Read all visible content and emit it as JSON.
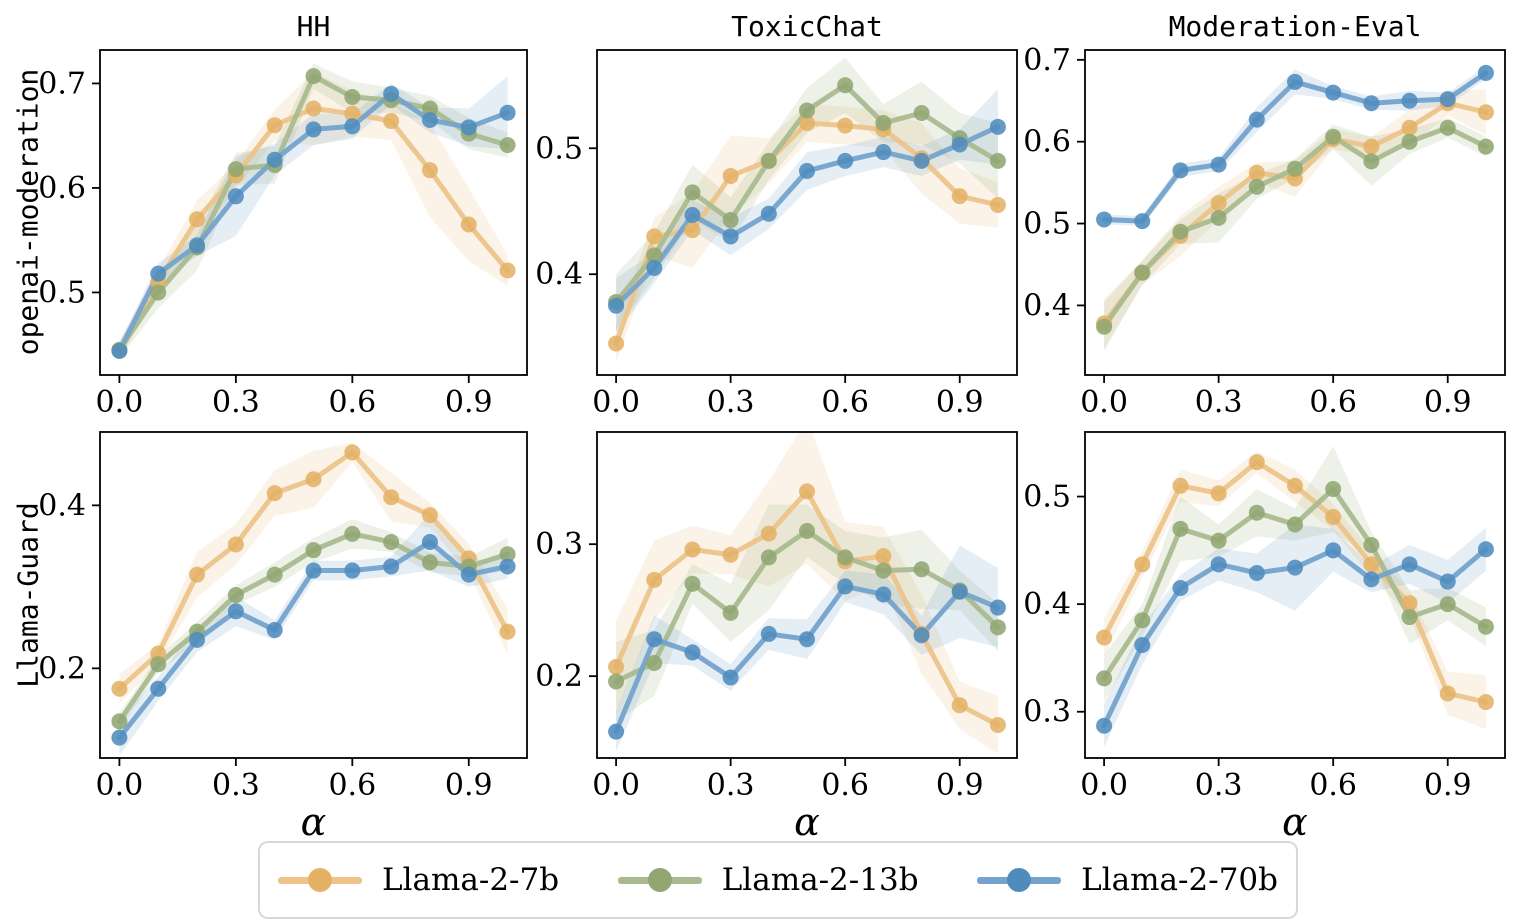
{
  "figure": {
    "background": "#ffffff",
    "frame_color": "#000000",
    "tick_label_color": "#000000"
  },
  "xlabel": "α",
  "rows": [
    {
      "label": "openai-moderation"
    },
    {
      "label": "Llama-Guard"
    }
  ],
  "cols": [
    {
      "title": "HH"
    },
    {
      "title": "ToxicChat"
    },
    {
      "title": "Moderation-Eval"
    }
  ],
  "legend": {
    "position": "bottom-center",
    "items": [
      {
        "label": "Llama-2-7b",
        "line_color": "#ecc48a",
        "marker_color": "#e4b267",
        "band_color": "rgba(230,180,110,0.16)"
      },
      {
        "label": "Llama-2-13b",
        "line_color": "#aaba90",
        "marker_color": "#91a672",
        "band_color": "rgba(145,166,114,0.16)"
      },
      {
        "label": "Llama-2-70b",
        "line_color": "#74a3cc",
        "marker_color": "#4f8cbe",
        "band_color": "rgba(95,145,195,0.16)"
      }
    ]
  },
  "chart_data": [
    {
      "id": "hh-openai-moderation",
      "type": "line",
      "title": "HH",
      "ylabel": "openai-moderation",
      "x": [
        0.0,
        0.1,
        0.2,
        0.3,
        0.4,
        0.5,
        0.6,
        0.7,
        0.8,
        0.9,
        1.0
      ],
      "xticks": [
        0.0,
        0.3,
        0.6,
        0.9
      ],
      "xtick_labels": [
        "0.0",
        "0.3",
        "0.6",
        "0.9"
      ],
      "ylim": [
        0.421,
        0.732
      ],
      "yticks": [
        0.5,
        0.6,
        0.7
      ],
      "grid": false,
      "series": [
        {
          "name": "Llama-2-7b",
          "values": [
            0.445,
            0.51,
            0.57,
            0.612,
            0.66,
            0.676,
            0.671,
            0.664,
            0.617,
            0.565,
            0.521
          ],
          "ci": [
            0.008,
            0.012,
            0.018,
            0.012,
            0.015,
            0.035,
            0.022,
            0.018,
            0.045,
            0.035,
            0.015
          ]
        },
        {
          "name": "Llama-2-13b",
          "values": [
            0.445,
            0.5,
            0.543,
            0.618,
            0.622,
            0.707,
            0.687,
            0.684,
            0.676,
            0.652,
            0.641
          ],
          "ci": [
            0.008,
            0.015,
            0.022,
            0.015,
            0.018,
            0.012,
            0.015,
            0.012,
            0.012,
            0.015,
            0.012
          ]
        },
        {
          "name": "Llama-2-70b",
          "values": [
            0.444,
            0.518,
            0.545,
            0.592,
            0.627,
            0.656,
            0.659,
            0.69,
            0.665,
            0.658,
            0.672
          ],
          "ci": [
            0.008,
            0.01,
            0.01,
            0.038,
            0.015,
            0.015,
            0.012,
            0.01,
            0.012,
            0.018,
            0.035
          ]
        }
      ]
    },
    {
      "id": "toxicchat-openai-moderation",
      "type": "line",
      "title": "ToxicChat",
      "ylabel": "openai-moderation",
      "x": [
        0.0,
        0.1,
        0.2,
        0.3,
        0.4,
        0.5,
        0.6,
        0.7,
        0.8,
        0.9,
        1.0
      ],
      "xticks": [
        0.0,
        0.3,
        0.6,
        0.9
      ],
      "xtick_labels": [
        "0.0",
        "0.3",
        "0.6",
        "0.9"
      ],
      "ylim": [
        0.32,
        0.578
      ],
      "yticks": [
        0.4,
        0.5
      ],
      "grid": false,
      "series": [
        {
          "name": "Llama-2-7b",
          "values": [
            0.345,
            0.43,
            0.435,
            0.478,
            0.49,
            0.52,
            0.518,
            0.515,
            0.492,
            0.462,
            0.455
          ],
          "ci": [
            0.015,
            0.015,
            0.03,
            0.032,
            0.018,
            0.015,
            0.015,
            0.015,
            0.028,
            0.022,
            0.018
          ]
        },
        {
          "name": "Llama-2-13b",
          "values": [
            0.378,
            0.415,
            0.465,
            0.443,
            0.49,
            0.53,
            0.55,
            0.52,
            0.528,
            0.508,
            0.49
          ],
          "ci": [
            0.022,
            0.018,
            0.022,
            0.018,
            0.015,
            0.018,
            0.022,
            0.015,
            0.025,
            0.02,
            0.03
          ]
        },
        {
          "name": "Llama-2-70b",
          "values": [
            0.375,
            0.405,
            0.447,
            0.43,
            0.448,
            0.482,
            0.49,
            0.497,
            0.49,
            0.503,
            0.517
          ],
          "ci": [
            0.022,
            0.012,
            0.012,
            0.015,
            0.012,
            0.015,
            0.012,
            0.012,
            0.012,
            0.012,
            0.03
          ]
        }
      ]
    },
    {
      "id": "moderation-eval-openai-moderation",
      "type": "line",
      "title": "Moderation-Eval",
      "ylabel": "openai-moderation",
      "x": [
        0.0,
        0.1,
        0.2,
        0.3,
        0.4,
        0.5,
        0.6,
        0.7,
        0.8,
        0.9,
        1.0
      ],
      "xticks": [
        0.0,
        0.3,
        0.6,
        0.9
      ],
      "xtick_labels": [
        "0.0",
        "0.3",
        "0.6",
        "0.9"
      ],
      "ylim": [
        0.315,
        0.712
      ],
      "yticks": [
        0.4,
        0.5,
        0.6,
        0.7
      ],
      "grid": false,
      "series": [
        {
          "name": "Llama-2-7b",
          "values": [
            0.378,
            0.44,
            0.485,
            0.525,
            0.562,
            0.555,
            0.603,
            0.594,
            0.617,
            0.647,
            0.636
          ],
          "ci": [
            0.03,
            0.015,
            0.025,
            0.02,
            0.012,
            0.022,
            0.012,
            0.012,
            0.022,
            0.015,
            0.028
          ]
        },
        {
          "name": "Llama-2-13b",
          "values": [
            0.374,
            0.44,
            0.49,
            0.507,
            0.545,
            0.567,
            0.606,
            0.576,
            0.6,
            0.617,
            0.594
          ],
          "ci": [
            0.03,
            0.015,
            0.015,
            0.03,
            0.015,
            0.012,
            0.015,
            0.03,
            0.015,
            0.012,
            0.012
          ]
        },
        {
          "name": "Llama-2-70b",
          "values": [
            0.505,
            0.503,
            0.565,
            0.572,
            0.627,
            0.673,
            0.66,
            0.647,
            0.65,
            0.652,
            0.684
          ],
          "ci": [
            0.006,
            0.006,
            0.008,
            0.008,
            0.015,
            0.015,
            0.008,
            0.008,
            0.012,
            0.008,
            0.008
          ]
        }
      ]
    },
    {
      "id": "hh-llama-guard",
      "type": "line",
      "title": "HH",
      "ylabel": "Llama-Guard",
      "xlabel": "α",
      "x": [
        0.0,
        0.1,
        0.2,
        0.3,
        0.4,
        0.5,
        0.6,
        0.7,
        0.8,
        0.9,
        1.0
      ],
      "xticks": [
        0.0,
        0.3,
        0.6,
        0.9
      ],
      "xtick_labels": [
        "0.0",
        "0.3",
        "0.6",
        "0.9"
      ],
      "ylim": [
        0.09,
        0.49
      ],
      "yticks": [
        0.2,
        0.4
      ],
      "grid": false,
      "series": [
        {
          "name": "Llama-2-7b",
          "values": [
            0.175,
            0.218,
            0.315,
            0.352,
            0.415,
            0.432,
            0.465,
            0.41,
            0.388,
            0.335,
            0.245
          ],
          "ci": [
            0.018,
            0.012,
            0.028,
            0.025,
            0.028,
            0.035,
            0.012,
            0.03,
            0.015,
            0.018,
            0.028
          ]
        },
        {
          "name": "Llama-2-13b",
          "values": [
            0.135,
            0.205,
            0.245,
            0.29,
            0.315,
            0.345,
            0.365,
            0.355,
            0.33,
            0.325,
            0.34
          ],
          "ci": [
            0.01,
            0.01,
            0.012,
            0.012,
            0.015,
            0.015,
            0.018,
            0.012,
            0.012,
            0.012,
            0.02
          ]
        },
        {
          "name": "Llama-2-70b",
          "values": [
            0.115,
            0.175,
            0.235,
            0.27,
            0.247,
            0.32,
            0.32,
            0.325,
            0.355,
            0.315,
            0.325
          ],
          "ci": [
            0.022,
            0.015,
            0.015,
            0.018,
            0.012,
            0.012,
            0.012,
            0.012,
            0.035,
            0.015,
            0.015
          ]
        }
      ]
    },
    {
      "id": "toxicchat-llama-guard",
      "type": "line",
      "title": "ToxicChat",
      "ylabel": "Llama-Guard",
      "xlabel": "α",
      "x": [
        0.0,
        0.1,
        0.2,
        0.3,
        0.4,
        0.5,
        0.6,
        0.7,
        0.8,
        0.9,
        1.0
      ],
      "xticks": [
        0.0,
        0.3,
        0.6,
        0.9
      ],
      "xtick_labels": [
        "0.0",
        "0.3",
        "0.6",
        "0.9"
      ],
      "ylim": [
        0.138,
        0.385
      ],
      "yticks": [
        0.2,
        0.3
      ],
      "grid": false,
      "series": [
        {
          "name": "Llama-2-7b",
          "values": [
            0.207,
            0.273,
            0.296,
            0.292,
            0.308,
            0.34,
            0.287,
            0.291,
            0.232,
            0.178,
            0.163
          ],
          "ci": [
            0.035,
            0.03,
            0.018,
            0.015,
            0.04,
            0.055,
            0.03,
            0.022,
            0.03,
            0.018,
            0.022
          ]
        },
        {
          "name": "Llama-2-13b",
          "values": [
            0.196,
            0.21,
            0.27,
            0.248,
            0.29,
            0.31,
            0.29,
            0.28,
            0.281,
            0.265,
            0.237
          ],
          "ci": [
            0.03,
            0.025,
            0.015,
            0.022,
            0.04,
            0.02,
            0.02,
            0.025,
            0.03,
            0.015,
            0.018
          ]
        },
        {
          "name": "Llama-2-70b",
          "values": [
            0.158,
            0.228,
            0.218,
            0.199,
            0.232,
            0.228,
            0.268,
            0.262,
            0.231,
            0.264,
            0.252
          ],
          "ci": [
            0.015,
            0.018,
            0.01,
            0.01,
            0.012,
            0.015,
            0.012,
            0.015,
            0.015,
            0.035,
            0.03
          ]
        }
      ]
    },
    {
      "id": "moderation-eval-llama-guard",
      "type": "line",
      "title": "Moderation-Eval",
      "ylabel": "Llama-Guard",
      "xlabel": "α",
      "x": [
        0.0,
        0.1,
        0.2,
        0.3,
        0.4,
        0.5,
        0.6,
        0.7,
        0.8,
        0.9,
        1.0
      ],
      "xticks": [
        0.0,
        0.3,
        0.6,
        0.9
      ],
      "xtick_labels": [
        "0.0",
        "0.3",
        "0.6",
        "0.9"
      ],
      "ylim": [
        0.257,
        0.56
      ],
      "yticks": [
        0.3,
        0.4,
        0.5
      ],
      "grid": false,
      "series": [
        {
          "name": "Llama-2-7b",
          "values": [
            0.369,
            0.437,
            0.51,
            0.503,
            0.532,
            0.51,
            0.481,
            0.437,
            0.401,
            0.317,
            0.309
          ],
          "ci": [
            0.018,
            0.012,
            0.015,
            0.012,
            0.01,
            0.015,
            0.012,
            0.012,
            0.012,
            0.02,
            0.025
          ]
        },
        {
          "name": "Llama-2-13b",
          "values": [
            0.331,
            0.385,
            0.47,
            0.459,
            0.485,
            0.474,
            0.507,
            0.455,
            0.388,
            0.4,
            0.379
          ],
          "ci": [
            0.022,
            0.015,
            0.03,
            0.015,
            0.022,
            0.015,
            0.04,
            0.012,
            0.025,
            0.015,
            0.018
          ]
        },
        {
          "name": "Llama-2-70b",
          "values": [
            0.287,
            0.362,
            0.415,
            0.437,
            0.429,
            0.434,
            0.45,
            0.423,
            0.437,
            0.421,
            0.451
          ],
          "ci": [
            0.02,
            0.018,
            0.012,
            0.015,
            0.018,
            0.04,
            0.02,
            0.012,
            0.018,
            0.02,
            0.02
          ]
        }
      ]
    }
  ]
}
